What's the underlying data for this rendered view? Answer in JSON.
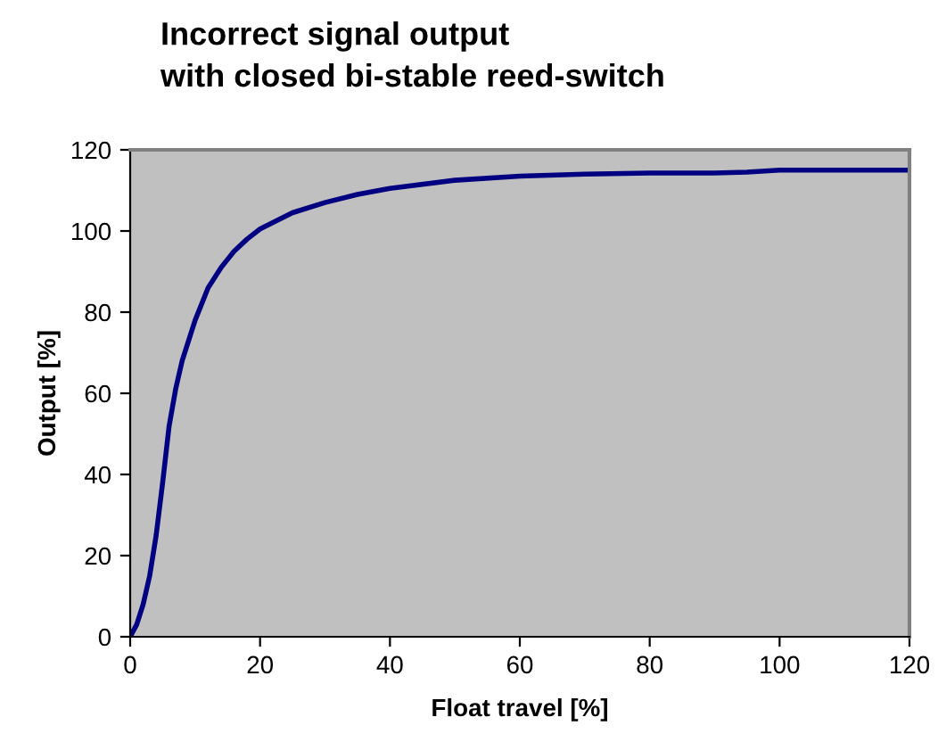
{
  "chart_data": {
    "type": "line",
    "title": "Incorrect signal output\nwith closed bi-stable reed-switch",
    "xlabel": "Float travel [%]",
    "ylabel": "Output [%]",
    "series": [
      {
        "color": "#000080",
        "x": [
          0,
          1,
          2,
          3,
          4,
          5,
          6,
          7,
          8,
          10,
          12,
          14,
          16,
          18,
          20,
          25,
          30,
          35,
          40,
          50,
          60,
          70,
          80,
          90,
          95,
          100,
          110,
          120
        ],
        "values": [
          0,
          3,
          8,
          15,
          25,
          38,
          52,
          61,
          68,
          78,
          86,
          91,
          95,
          98,
          100.5,
          104.5,
          107,
          109,
          110.5,
          112.5,
          113.5,
          114,
          114.3,
          114.3,
          114.5,
          115,
          115,
          115
        ]
      }
    ],
    "xlim": [
      0,
      120
    ],
    "xticks": [
      0,
      20,
      40,
      60,
      80,
      100,
      120
    ],
    "ylim": [
      0,
      120
    ],
    "yticks": [
      0,
      20,
      40,
      60,
      80,
      100,
      120
    ],
    "grid": false,
    "legend": false,
    "marker": "none",
    "line_style": "solid"
  }
}
